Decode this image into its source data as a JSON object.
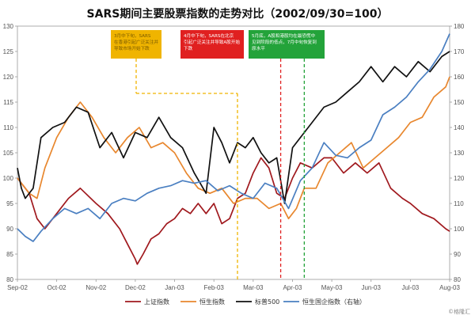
{
  "chart_data": {
    "type": "line",
    "title": "SARS期间主要股票指数的走势对比（2002/09/30=100）",
    "x_ticks": [
      "Sep-02",
      "Oct-02",
      "Nov-02",
      "Dec-02",
      "Jan-03",
      "Feb-03",
      "Mar-03",
      "Apr-03",
      "May-03",
      "Jun-03",
      "Jul-03",
      "Aug-03"
    ],
    "y_left": {
      "min": 80,
      "max": 130,
      "ticks": [
        80,
        85,
        90,
        95,
        100,
        105,
        110,
        115,
        120,
        125,
        130
      ]
    },
    "y_right": {
      "min": 80,
      "max": 180,
      "ticks": [
        80,
        90,
        100,
        110,
        120,
        130,
        140,
        150,
        160,
        170,
        180
      ]
    },
    "grid": false,
    "legend_position": "bottom",
    "series": [
      {
        "name": "上证指数",
        "axis": "left",
        "color": "#a0191e",
        "x": [
          0,
          0.3,
          0.5,
          0.7,
          1.0,
          1.3,
          1.6,
          2.0,
          2.3,
          2.6,
          2.8,
          3.0,
          3.05,
          3.2,
          3.4,
          3.6,
          3.8,
          4.0,
          4.2,
          4.4,
          4.6,
          4.8,
          5.0,
          5.2,
          5.4,
          5.6,
          5.8,
          6.0,
          6.2,
          6.4,
          6.6,
          6.8,
          7.0,
          7.2,
          7.5,
          7.8,
          8.0,
          8.3,
          8.6,
          8.9,
          9.2,
          9.5,
          9.8,
          10.0,
          10.3,
          10.6,
          10.9,
          11.0
        ],
        "y": [
          100,
          97,
          92,
          90,
          93,
          96,
          98,
          95,
          93,
          90,
          87,
          84,
          83,
          85,
          88,
          89,
          91,
          92,
          94,
          93,
          95,
          93,
          95,
          91,
          92,
          96,
          97,
          101,
          104,
          102,
          97,
          96,
          100,
          103,
          102,
          104,
          104,
          101,
          103,
          101,
          103,
          98,
          96,
          95,
          93,
          92,
          90,
          89.5
        ]
      },
      {
        "name": "恒生指数",
        "axis": "left",
        "color": "#e8872e",
        "x": [
          0,
          0.3,
          0.5,
          0.7,
          1.0,
          1.3,
          1.6,
          1.9,
          2.2,
          2.5,
          2.8,
          3.1,
          3.4,
          3.7,
          4.0,
          4.3,
          4.6,
          4.9,
          5.2,
          5.5,
          5.8,
          6.1,
          6.4,
          6.7,
          6.9,
          7.1,
          7.3,
          7.6,
          7.9,
          8.2,
          8.5,
          8.8,
          9.1,
          9.4,
          9.7,
          10.0,
          10.3,
          10.6,
          10.9,
          11.0
        ],
        "y": [
          100,
          97,
          96,
          102,
          108,
          112,
          115,
          112,
          108,
          105,
          108,
          110,
          106,
          107,
          105,
          101,
          98,
          97,
          98,
          95,
          96,
          96,
          94,
          95,
          92,
          94,
          98,
          98,
          103,
          105,
          107,
          102,
          104,
          106,
          108,
          111,
          112,
          116,
          118,
          120
        ]
      },
      {
        "name": "标普500",
        "axis": "left",
        "color": "#111111",
        "x": [
          0,
          0.1,
          0.2,
          0.4,
          0.6,
          0.9,
          1.2,
          1.5,
          1.8,
          2.1,
          2.4,
          2.7,
          3.0,
          3.3,
          3.6,
          3.9,
          4.2,
          4.5,
          4.8,
          5.0,
          5.2,
          5.4,
          5.6,
          5.8,
          6.0,
          6.2,
          6.4,
          6.6,
          6.8,
          7.0,
          7.2,
          7.5,
          7.8,
          8.1,
          8.4,
          8.7,
          9.0,
          9.3,
          9.6,
          9.9,
          10.2,
          10.5,
          10.8,
          11.0
        ],
        "y": [
          102,
          98,
          96,
          98,
          108,
          110,
          111,
          114,
          113,
          106,
          109,
          104,
          109,
          108,
          112,
          108,
          106,
          101,
          97,
          110,
          107,
          103,
          107,
          106,
          108,
          105,
          103,
          104,
          95,
          106,
          108,
          111,
          114,
          115,
          117,
          119,
          122,
          119,
          122,
          120,
          123,
          121,
          124,
          125
        ]
      },
      {
        "name": "恒生国企指数（右轴）",
        "axis": "right",
        "color": "#4a7fc1",
        "x": [
          0,
          0.2,
          0.4,
          0.6,
          0.9,
          1.2,
          1.5,
          1.8,
          2.1,
          2.4,
          2.7,
          3.0,
          3.3,
          3.6,
          3.9,
          4.2,
          4.5,
          4.8,
          5.1,
          5.4,
          5.7,
          6.0,
          6.3,
          6.6,
          6.9,
          7.2,
          7.5,
          7.8,
          8.1,
          8.4,
          8.7,
          9.0,
          9.3,
          9.6,
          9.9,
          10.2,
          10.5,
          10.8,
          11.0
        ],
        "y": [
          100,
          97,
          95,
          99,
          104,
          108,
          106,
          108,
          104,
          110,
          112,
          111,
          114,
          116,
          117,
          119,
          118,
          119,
          115,
          117,
          114,
          112,
          118,
          116,
          108,
          119,
          124,
          134,
          129,
          128,
          132,
          135,
          145,
          148,
          152,
          158,
          163,
          170,
          177
        ]
      }
    ],
    "annotations": [
      {
        "text": "3月中下旬，SARS在香港引起广泛关注并导致市场开始下跌",
        "x": 5.6,
        "color": "#f0b400",
        "text_color": "#7a5a00"
      },
      {
        "text": "4月中下旬，SARS在北京引起广泛关注并导致A股开始下跌",
        "x": 6.7,
        "color": "#e02020",
        "text_color": "#ffffff"
      },
      {
        "text": "5月底，A股和港股均在最恐慌中见到阶段的低点，7月中旬恢复到原水平",
        "x": 7.3,
        "color": "#23a33a",
        "text_color": "#ffffff"
      }
    ]
  },
  "legend": [
    {
      "label": "上证指数",
      "color": "#a0191e"
    },
    {
      "label": "恒生指数",
      "color": "#e8872e"
    },
    {
      "label": "标普500",
      "color": "#111111"
    },
    {
      "label": "恒生国企指数（右轴）",
      "color": "#4a7fc1"
    }
  ],
  "watermark": "©格隆汇"
}
